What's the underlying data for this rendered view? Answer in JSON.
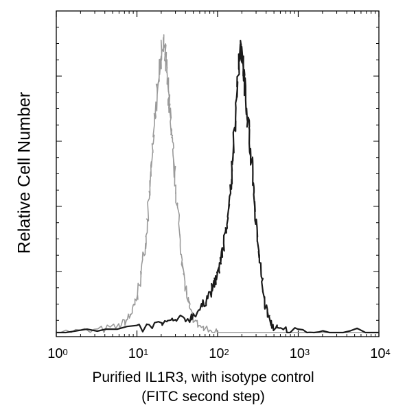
{
  "chart_data": {
    "type": "line",
    "title": "",
    "xlabel_line1": "Purified IL1R3, with isotype control",
    "xlabel_line2": "(FITC second step)",
    "ylabel": "Relative Cell Number",
    "x_scale": "log",
    "xlim": [
      1,
      10000
    ],
    "ylim": [
      0,
      1
    ],
    "x_ticks": [
      {
        "base": "10",
        "exp": "0"
      },
      {
        "base": "10",
        "exp": "1"
      },
      {
        "base": "10",
        "exp": "2"
      },
      {
        "base": "10",
        "exp": "3"
      },
      {
        "base": "10",
        "exp": "4"
      }
    ],
    "grid": false,
    "legend": "none",
    "series": [
      {
        "color": "#9a9a9a",
        "x": [
          1,
          3,
          6,
          8,
          9,
          10,
          11,
          12,
          13,
          14,
          15,
          16,
          17,
          18,
          19,
          20,
          21,
          22,
          23,
          24,
          25,
          26,
          27,
          28,
          30,
          32,
          35,
          38,
          42,
          46,
          55,
          70,
          100,
          10000
        ],
        "y": [
          0.0,
          0.005,
          0.02,
          0.05,
          0.08,
          0.12,
          0.18,
          0.26,
          0.34,
          0.44,
          0.56,
          0.66,
          0.76,
          0.84,
          0.9,
          0.95,
          0.99,
          0.97,
          0.92,
          0.86,
          0.8,
          0.74,
          0.68,
          0.62,
          0.52,
          0.42,
          0.3,
          0.2,
          0.12,
          0.07,
          0.03,
          0.01,
          0.0,
          0.0
        ]
      },
      {
        "color": "#1a1a1a",
        "x": [
          1,
          10,
          20,
          30,
          45,
          60,
          75,
          90,
          100,
          110,
          120,
          130,
          140,
          150,
          160,
          170,
          180,
          190,
          200,
          210,
          220,
          240,
          260,
          280,
          300,
          330,
          360,
          400,
          460,
          550,
          800,
          2000,
          10000
        ],
        "y": [
          0.0,
          0.01,
          0.03,
          0.04,
          0.05,
          0.08,
          0.12,
          0.16,
          0.2,
          0.25,
          0.3,
          0.37,
          0.45,
          0.55,
          0.66,
          0.78,
          0.9,
          0.98,
          0.96,
          0.9,
          0.82,
          0.72,
          0.62,
          0.5,
          0.38,
          0.26,
          0.16,
          0.08,
          0.03,
          0.01,
          0.005,
          0.003,
          0.0
        ]
      }
    ]
  }
}
